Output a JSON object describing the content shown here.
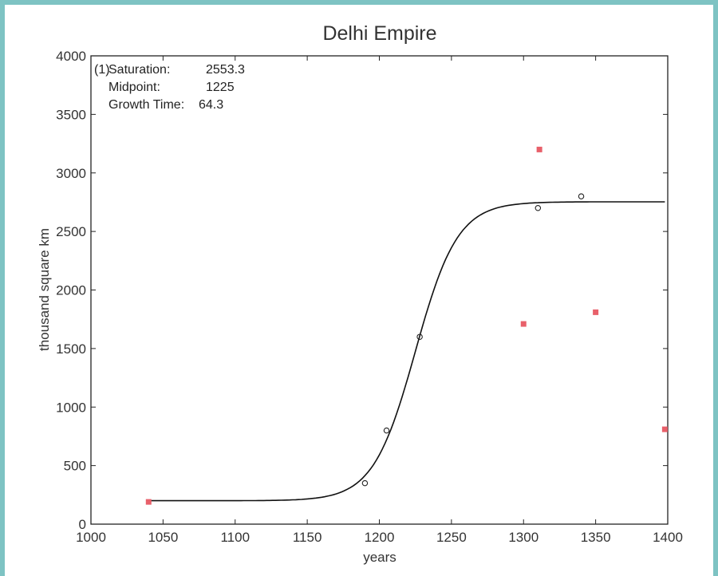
{
  "chart_data": {
    "type": "scatter",
    "title": "Delhi Empire",
    "xlabel": "years",
    "ylabel": "thousand square km",
    "xlim": [
      1000,
      1400
    ],
    "ylim": [
      0,
      4000
    ],
    "x_ticks": [
      1000,
      1050,
      1100,
      1150,
      1200,
      1250,
      1300,
      1350,
      1400
    ],
    "y_ticks": [
      0,
      500,
      1000,
      1500,
      2000,
      2500,
      3000,
      3500,
      4000
    ],
    "grid": false,
    "annotation": {
      "marker": "(1)",
      "lines": [
        {
          "label": "Saturation:",
          "value": "2553.3"
        },
        {
          "label": "Midpoint:",
          "value": "1225"
        },
        {
          "label": "Growth Time:",
          "value": "64.3"
        }
      ]
    },
    "series": [
      {
        "marker": "circle",
        "color": "#222222",
        "x": [
          1190,
          1205,
          1228,
          1310,
          1340
        ],
        "y": [
          350,
          800,
          1600,
          2700,
          2800
        ]
      },
      {
        "marker": "square",
        "color": "#e8606a",
        "x": [
          1040,
          1300,
          1311,
          1350,
          1398
        ],
        "y": [
          190,
          1710,
          3200,
          1810,
          810
        ]
      },
      {
        "marker": "line",
        "color": "#111111",
        "fit": "logistic",
        "baseline": 200,
        "saturation": 2553.3,
        "midpoint": 1225,
        "growth_time": 64.3,
        "x_range": [
          1040,
          1398
        ]
      }
    ]
  }
}
